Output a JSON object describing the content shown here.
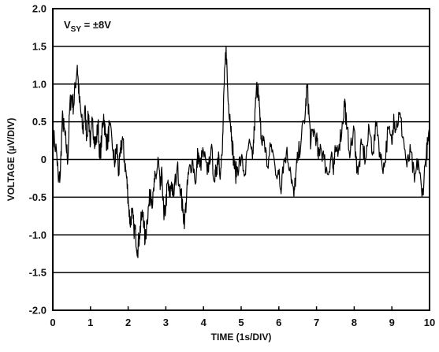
{
  "chart_data": {
    "type": "line",
    "title": "",
    "annotation": {
      "main": "V",
      "sub": "SY",
      "rest": " = ±8V"
    },
    "xlabel": "TIME (1s/DIV)",
    "ylabel": "VOLTAGE (µV/DIV)",
    "xlim": [
      0,
      10
    ],
    "ylim": [
      -2.0,
      2.0
    ],
    "x_ticks": [
      "0",
      "1",
      "2",
      "3",
      "4",
      "5",
      "6",
      "7",
      "8",
      "9",
      "10"
    ],
    "y_ticks": [
      "2.0",
      "1.5",
      "1.0",
      "0.5",
      "0",
      "-0.5",
      "-1.0",
      "-1.5",
      "-2.0"
    ],
    "grid": "horizontal",
    "series": [
      {
        "color": "#000000",
        "points": [
          [
            0.0,
            0.35
          ],
          [
            0.1,
            0.1
          ],
          [
            0.15,
            -0.3
          ],
          [
            0.2,
            -0.2
          ],
          [
            0.25,
            0.55
          ],
          [
            0.3,
            0.4
          ],
          [
            0.35,
            0.2
          ],
          [
            0.4,
            0.0
          ],
          [
            0.45,
            0.7
          ],
          [
            0.5,
            0.85
          ],
          [
            0.55,
            0.7
          ],
          [
            0.6,
            1.0
          ],
          [
            0.65,
            1.25
          ],
          [
            0.7,
            0.8
          ],
          [
            0.75,
            0.6
          ],
          [
            0.8,
            0.35
          ],
          [
            0.85,
            0.7
          ],
          [
            0.9,
            0.3
          ],
          [
            0.95,
            0.6
          ],
          [
            1.0,
            0.2
          ],
          [
            1.05,
            0.5
          ],
          [
            1.1,
            0.3
          ],
          [
            1.15,
            0.2
          ],
          [
            1.2,
            0.5
          ],
          [
            1.25,
            0.0
          ],
          [
            1.3,
            0.3
          ],
          [
            1.35,
            0.6
          ],
          [
            1.4,
            0.3
          ],
          [
            1.45,
            0.2
          ],
          [
            1.5,
            0.45
          ],
          [
            1.6,
            0.1
          ],
          [
            1.65,
            -0.05
          ],
          [
            1.7,
            0.2
          ],
          [
            1.75,
            -0.2
          ],
          [
            1.8,
            0.1
          ],
          [
            1.85,
            0.3
          ],
          [
            1.9,
            0.0
          ],
          [
            1.95,
            -0.2
          ],
          [
            2.0,
            -0.5
          ],
          [
            2.05,
            -0.85
          ],
          [
            2.1,
            -0.7
          ],
          [
            2.15,
            -0.9
          ],
          [
            2.2,
            -1.0
          ],
          [
            2.25,
            -1.2
          ],
          [
            2.3,
            -1.0
          ],
          [
            2.35,
            -0.8
          ],
          [
            2.4,
            -0.7
          ],
          [
            2.45,
            -1.1
          ],
          [
            2.5,
            -0.8
          ],
          [
            2.55,
            -0.6
          ],
          [
            2.6,
            -0.4
          ],
          [
            2.65,
            -0.6
          ],
          [
            2.7,
            -0.3
          ],
          [
            2.75,
            -0.2
          ],
          [
            2.8,
            0.0
          ],
          [
            2.85,
            -0.4
          ],
          [
            2.9,
            -0.2
          ],
          [
            2.95,
            -0.8
          ],
          [
            3.0,
            -0.6
          ],
          [
            3.05,
            -0.3
          ],
          [
            3.1,
            -0.5
          ],
          [
            3.15,
            -0.3
          ],
          [
            3.2,
            -0.5
          ],
          [
            3.3,
            -0.1
          ],
          [
            3.4,
            -0.4
          ],
          [
            3.45,
            -0.7
          ],
          [
            3.5,
            -0.8
          ],
          [
            3.55,
            -0.5
          ],
          [
            3.6,
            -0.2
          ],
          [
            3.7,
            0.0
          ],
          [
            3.8,
            -0.3
          ],
          [
            3.85,
            0.1
          ],
          [
            3.9,
            -0.1
          ],
          [
            4.0,
            0.1
          ],
          [
            4.1,
            -0.2
          ],
          [
            4.2,
            0.15
          ],
          [
            4.3,
            -0.3
          ],
          [
            4.35,
            -0.1
          ],
          [
            4.4,
            0.1
          ],
          [
            4.45,
            -0.2
          ],
          [
            4.5,
            0.1
          ],
          [
            4.55,
            1.0
          ],
          [
            4.6,
            1.5
          ],
          [
            4.65,
            0.8
          ],
          [
            4.7,
            0.6
          ],
          [
            4.75,
            0.3
          ],
          [
            4.8,
            0.0
          ],
          [
            4.85,
            -0.2
          ],
          [
            4.9,
            -0.1
          ],
          [
            5.0,
            0.0
          ],
          [
            5.1,
            -0.2
          ],
          [
            5.2,
            0.2
          ],
          [
            5.3,
            0.0
          ],
          [
            5.35,
            0.4
          ],
          [
            5.4,
            0.9
          ],
          [
            5.45,
            1.0
          ],
          [
            5.5,
            0.5
          ],
          [
            5.55,
            0.2
          ],
          [
            5.6,
            0.3
          ],
          [
            5.7,
            -0.1
          ],
          [
            5.8,
            0.2
          ],
          [
            5.9,
            -0.1
          ],
          [
            6.0,
            -0.2
          ],
          [
            6.05,
            -0.4
          ],
          [
            6.1,
            -0.1
          ],
          [
            6.2,
            0.1
          ],
          [
            6.3,
            -0.1
          ],
          [
            6.4,
            -0.5
          ],
          [
            6.45,
            -0.2
          ],
          [
            6.5,
            0.0
          ],
          [
            6.6,
            0.3
          ],
          [
            6.7,
            0.6
          ],
          [
            6.75,
            1.0
          ],
          [
            6.8,
            0.6
          ],
          [
            6.85,
            0.2
          ],
          [
            6.9,
            0.4
          ],
          [
            7.0,
            0.3
          ],
          [
            7.05,
            0.0
          ],
          [
            7.1,
            0.2
          ],
          [
            7.2,
            0.0
          ],
          [
            7.3,
            -0.2
          ],
          [
            7.4,
            0.1
          ],
          [
            7.45,
            -0.2
          ],
          [
            7.5,
            0.1
          ],
          [
            7.6,
            0.2
          ],
          [
            7.7,
            0.5
          ],
          [
            7.75,
            0.8
          ],
          [
            7.8,
            0.4
          ],
          [
            7.9,
            0.1
          ],
          [
            8.0,
            0.4
          ],
          [
            8.05,
            0.0
          ],
          [
            8.1,
            -0.2
          ],
          [
            8.2,
            0.2
          ],
          [
            8.3,
            0.0
          ],
          [
            8.4,
            0.4
          ],
          [
            8.5,
            0.1
          ],
          [
            8.6,
            0.5
          ],
          [
            8.7,
            0.0
          ],
          [
            8.8,
            -0.1
          ],
          [
            8.9,
            0.4
          ],
          [
            9.0,
            0.2
          ],
          [
            9.05,
            0.6
          ],
          [
            9.1,
            0.4
          ],
          [
            9.2,
            0.6
          ],
          [
            9.3,
            0.3
          ],
          [
            9.4,
            -0.1
          ],
          [
            9.5,
            0.1
          ],
          [
            9.6,
            -0.3
          ],
          [
            9.7,
            0.0
          ],
          [
            9.8,
            -0.5
          ],
          [
            9.9,
            0.0
          ],
          [
            9.95,
            0.2
          ],
          [
            10.0,
            0.3
          ]
        ]
      }
    ]
  }
}
